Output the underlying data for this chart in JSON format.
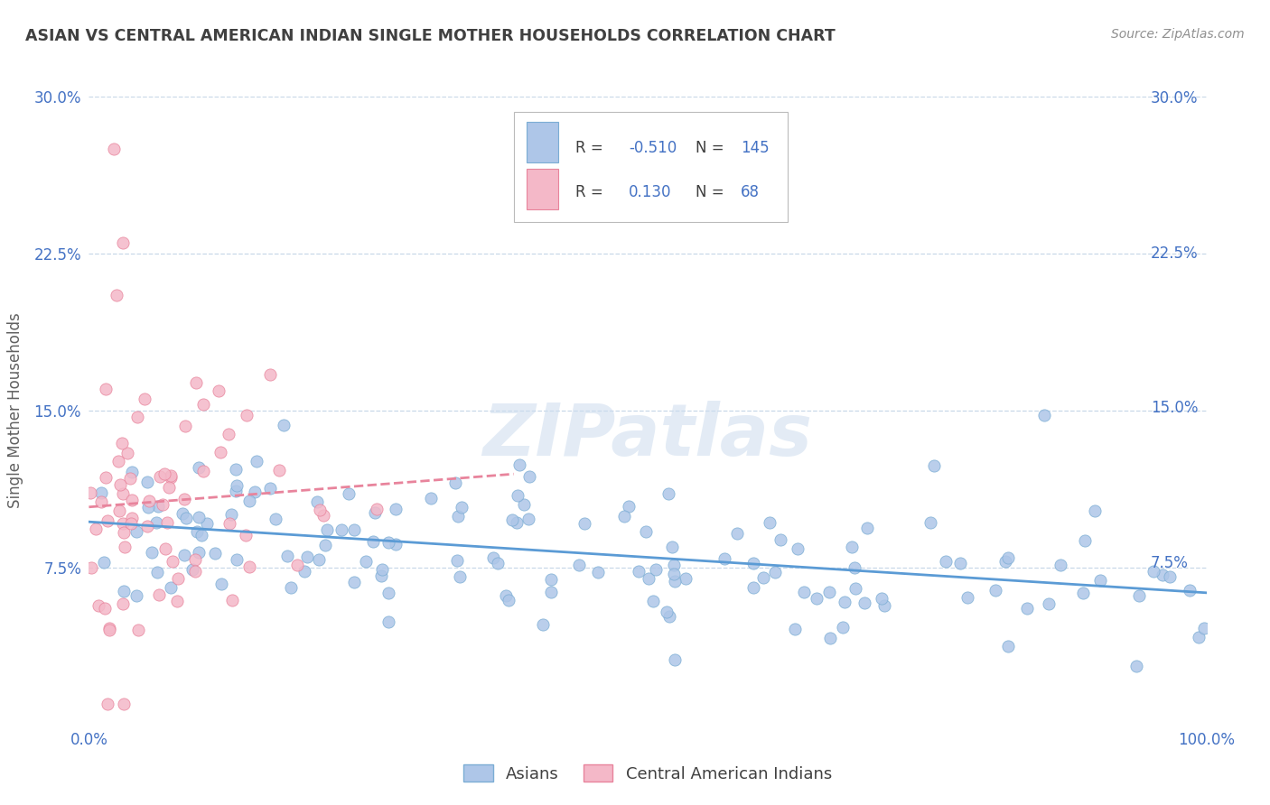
{
  "title": "ASIAN VS CENTRAL AMERICAN INDIAN SINGLE MOTHER HOUSEHOLDS CORRELATION CHART",
  "source": "Source: ZipAtlas.com",
  "ylabel": "Single Mother Households",
  "xlim": [
    0,
    1.0
  ],
  "ylim": [
    0,
    0.3
  ],
  "yticks": [
    0.075,
    0.15,
    0.225,
    0.3
  ],
  "ytick_labels": [
    "7.5%",
    "15.0%",
    "22.5%",
    "30.0%"
  ],
  "xticks": [
    0.0,
    0.1,
    0.2,
    0.3,
    0.4,
    0.5,
    0.6,
    0.7,
    0.8,
    0.9,
    1.0
  ],
  "xtick_labels": [
    "0.0%",
    "",
    "",
    "",
    "",
    "",
    "",
    "",
    "",
    "",
    "100.0%"
  ],
  "title_color": "#404040",
  "source_color": "#909090",
  "axis_label_color": "#606060",
  "tick_color": "#4472c4",
  "background_color": "#ffffff",
  "grid_color": "#c8d8e8",
  "asian_color": "#aec6e8",
  "asian_edge_color": "#7badd4",
  "asian_line_color": "#5b9bd5",
  "ca_color": "#f4b8c8",
  "ca_edge_color": "#e8849c",
  "ca_line_color": "#e8849c",
  "asian_R": -0.51,
  "asian_N": 145,
  "ca_R": 0.13,
  "ca_N": 68,
  "watermark": "ZIPatlas",
  "legend_label_color": "#404040",
  "legend_value_color": "#4472c4"
}
